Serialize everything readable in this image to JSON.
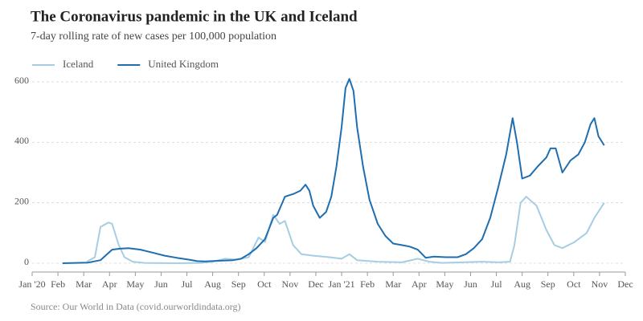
{
  "chart_data": {
    "type": "line",
    "title": "The Coronavirus pandemic in the UK and Iceland",
    "subtitle": "7-day rolling rate of new cases per 100,000 population",
    "source": "Source: Our World in Data (covid.ourworldindata.org)",
    "xlim": [
      0,
      23
    ],
    "ylim": [
      0,
      620
    ],
    "xticks": [
      {
        "value": 0,
        "label": "Jan '20"
      },
      {
        "value": 1,
        "label": "Feb"
      },
      {
        "value": 2,
        "label": "Mar"
      },
      {
        "value": 3,
        "label": "Apr"
      },
      {
        "value": 4,
        "label": "May"
      },
      {
        "value": 5,
        "label": "Jun"
      },
      {
        "value": 6,
        "label": "Jul"
      },
      {
        "value": 7,
        "label": "Aug"
      },
      {
        "value": 8,
        "label": "Sep"
      },
      {
        "value": 9,
        "label": "Oct"
      },
      {
        "value": 10,
        "label": "Nov"
      },
      {
        "value": 11,
        "label": "Dec"
      },
      {
        "value": 12,
        "label": "Jan '21"
      },
      {
        "value": 13,
        "label": "Feb"
      },
      {
        "value": 14,
        "label": "Mar"
      },
      {
        "value": 15,
        "label": "Apr"
      },
      {
        "value": 16,
        "label": "May"
      },
      {
        "value": 17,
        "label": "Jun"
      },
      {
        "value": 18,
        "label": "Jul"
      },
      {
        "value": 19,
        "label": "Aug"
      },
      {
        "value": 20,
        "label": "Sep"
      },
      {
        "value": 21,
        "label": "Oct"
      },
      {
        "value": 22,
        "label": "Nov"
      },
      {
        "value": 23,
        "label": "Dec"
      }
    ],
    "yticks": [
      0,
      200,
      400,
      600
    ],
    "grid": true,
    "series": [
      {
        "name": "Iceland",
        "color": "#a6cde3",
        "x": [
          2.12,
          2.43,
          2.65,
          2.96,
          3.1,
          3.36,
          3.58,
          3.9,
          4.36,
          5.6,
          6.54,
          7.0,
          7.48,
          7.94,
          8.4,
          8.78,
          9.03,
          9.35,
          9.6,
          9.8,
          10.12,
          10.44,
          10.9,
          11.53,
          12.0,
          12.3,
          12.6,
          13.4,
          14.33,
          14.95,
          15.4,
          15.9,
          17.45,
          18.07,
          18.53,
          18.7,
          18.94,
          19.16,
          19.56,
          19.94,
          20.25,
          20.56,
          21.03,
          21.5,
          21.8,
          22.18
        ],
        "values": [
          5,
          20,
          120,
          135,
          130,
          60,
          20,
          5,
          1,
          0,
          1,
          5,
          15,
          12,
          20,
          85,
          70,
          160,
          130,
          140,
          60,
          30,
          25,
          20,
          15,
          30,
          10,
          5,
          3,
          15,
          5,
          1,
          5,
          3,
          5,
          60,
          200,
          220,
          190,
          110,
          60,
          50,
          70,
          100,
          150,
          200
        ]
      },
      {
        "name": "United Kingdom",
        "color": "#1f6eb0",
        "x": [
          1.18,
          2.18,
          2.65,
          3.1,
          3.4,
          3.74,
          4.2,
          4.67,
          5.14,
          5.6,
          6.07,
          6.4,
          6.7,
          7.2,
          7.8,
          8.1,
          8.4,
          8.7,
          9.03,
          9.35,
          9.5,
          9.8,
          10.15,
          10.4,
          10.6,
          10.75,
          10.9,
          11.15,
          11.4,
          11.6,
          11.8,
          12.0,
          12.15,
          12.3,
          12.46,
          12.6,
          12.83,
          13.08,
          13.4,
          13.7,
          14.0,
          14.33,
          14.64,
          14.95,
          15.26,
          15.58,
          16.04,
          16.5,
          16.82,
          17.13,
          17.45,
          17.76,
          18.07,
          18.38,
          18.63,
          18.8,
          19.0,
          19.3,
          19.6,
          19.94,
          20.1,
          20.3,
          20.56,
          20.87,
          21.18,
          21.43,
          21.65,
          21.8,
          21.96,
          22.18
        ],
        "values": [
          0,
          2,
          10,
          45,
          48,
          50,
          45,
          35,
          25,
          18,
          12,
          7,
          6,
          8,
          10,
          15,
          30,
          50,
          80,
          150,
          160,
          220,
          230,
          240,
          260,
          240,
          190,
          150,
          170,
          220,
          320,
          450,
          580,
          610,
          570,
          450,
          320,
          210,
          130,
          90,
          65,
          60,
          55,
          45,
          18,
          22,
          20,
          20,
          30,
          50,
          80,
          150,
          250,
          360,
          480,
          400,
          280,
          290,
          320,
          350,
          380,
          380,
          300,
          340,
          360,
          400,
          460,
          480,
          420,
          390
        ]
      }
    ]
  }
}
